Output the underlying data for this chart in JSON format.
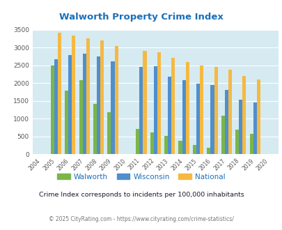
{
  "title": "Walworth Property Crime Index",
  "years": [
    2004,
    2005,
    2006,
    2007,
    2008,
    2009,
    2010,
    2011,
    2012,
    2013,
    2014,
    2015,
    2016,
    2017,
    2018,
    2019,
    2020
  ],
  "walworth": [
    null,
    2500,
    1780,
    2090,
    1420,
    1190,
    null,
    700,
    620,
    520,
    370,
    260,
    175,
    1090,
    680,
    575,
    null
  ],
  "wisconsin": [
    null,
    2670,
    2800,
    2830,
    2750,
    2610,
    null,
    2460,
    2470,
    2190,
    2090,
    1990,
    1940,
    1800,
    1540,
    1460,
    null
  ],
  "national": [
    null,
    3420,
    3340,
    3260,
    3210,
    3040,
    null,
    2900,
    2860,
    2720,
    2590,
    2490,
    2460,
    2370,
    2200,
    2110,
    null
  ],
  "walworth_color": "#7ab648",
  "wisconsin_color": "#4f8fcd",
  "national_color": "#f5b942",
  "bg_color": "#d6eaf2",
  "ylim": [
    0,
    3500
  ],
  "ylabel_step": 500,
  "subtitle": "Crime Index corresponds to incidents per 100,000 inhabitants",
  "footer": "© 2025 CityRating.com - https://www.cityrating.com/crime-statistics/",
  "title_color": "#1a6fba",
  "subtitle_color": "#1a1a2e",
  "footer_color": "#777777"
}
